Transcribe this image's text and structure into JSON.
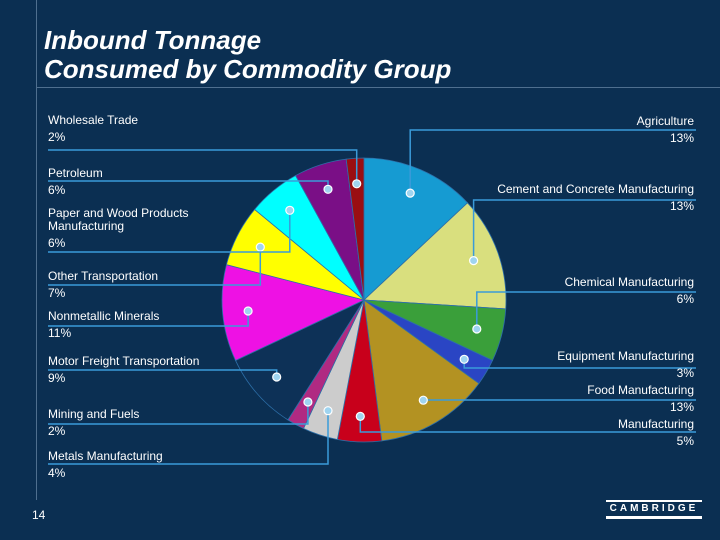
{
  "title": {
    "line1": "Inbound Tonnage",
    "line2": "Consumed by Commodity Group"
  },
  "slide_number": "14",
  "logo": {
    "text": "CAMBRIDGE"
  },
  "colors": {
    "background": "#0b2f52",
    "leader": "#3a9bd9",
    "marker": "#9fd4f0"
  },
  "chart_data": {
    "type": "pie",
    "title": "Inbound Tonnage Consumed by Commodity Group",
    "legend": "callout labels",
    "slices": [
      {
        "name": "Agriculture",
        "label": "13%",
        "value": 13,
        "color": "#169bd2"
      },
      {
        "name": "Cement and Concrete Manufacturing",
        "label": "13%",
        "value": 13,
        "color": "#d9df7e"
      },
      {
        "name": "Chemical Manufacturing",
        "label": "6%",
        "value": 6,
        "color": "#3a9f3a"
      },
      {
        "name": "Equipment Manufacturing",
        "label": "3%",
        "value": 3,
        "color": "#2a45c4"
      },
      {
        "name": "Food Manufacturing",
        "label": "13%",
        "value": 13,
        "color": "#b39222"
      },
      {
        "name": "Manufacturing",
        "label": "5%",
        "value": 5,
        "color": "#c8001b"
      },
      {
        "name": "Metals Manufacturing",
        "label": "4%",
        "value": 4,
        "color": "#cccccc"
      },
      {
        "name": "Mining and Fuels",
        "label": "2%",
        "value": 2,
        "color": "#b02a82"
      },
      {
        "name": "Motor Freight Transportation",
        "label": "9%",
        "value": 9,
        "color": "#0d3157"
      },
      {
        "name": "Nonmetallic Minerals",
        "label": "11%",
        "value": 11,
        "color": "#ee11e4"
      },
      {
        "name": "Other Transportation",
        "label": "7%",
        "value": 7,
        "color": "#ffff00"
      },
      {
        "name": "Paper and Wood Products Manufacturing",
        "label": "6%",
        "value": 6,
        "color": "#00ffff"
      },
      {
        "name": "Petroleum",
        "label": "6%",
        "value": 6,
        "color": "#7a0f86"
      },
      {
        "name": "Wholesale Trade",
        "label": "2%",
        "value": 2,
        "color": "#9a0e12"
      }
    ]
  }
}
